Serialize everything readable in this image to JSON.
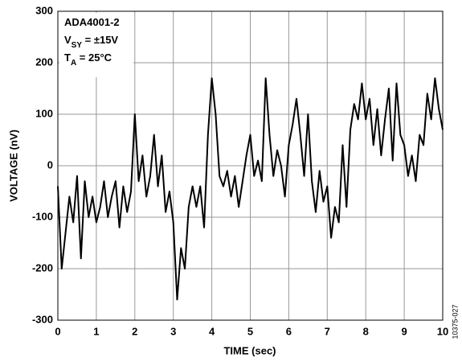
{
  "chart_data": {
    "type": "line",
    "xlabel": "TIME (sec)",
    "ylabel": "VOLTAGE (nV)",
    "annotation": [
      [
        "ADA4001-2"
      ],
      [
        "V",
        "SY",
        " = ±15V"
      ],
      [
        "T",
        "A",
        " = 25°C"
      ]
    ],
    "figure_id": "10375-027",
    "xlim": [
      0,
      10
    ],
    "ylim": [
      -300,
      300
    ],
    "xticks": [
      0,
      1,
      2,
      3,
      4,
      5,
      6,
      7,
      8,
      9,
      10
    ],
    "yticks": [
      -300,
      -200,
      -100,
      0,
      100,
      200,
      300
    ],
    "grid": true,
    "x": [
      0,
      0.1,
      0.2,
      0.3,
      0.4,
      0.5,
      0.6,
      0.7,
      0.8,
      0.9,
      1,
      1.1,
      1.2,
      1.3,
      1.4,
      1.5,
      1.6,
      1.7,
      1.8,
      1.9,
      2,
      2.1,
      2.2,
      2.3,
      2.4,
      2.5,
      2.6,
      2.7,
      2.8,
      2.9,
      3,
      3.1,
      3.2,
      3.3,
      3.4,
      3.5,
      3.6,
      3.7,
      3.8,
      3.9,
      4,
      4.1,
      4.2,
      4.3,
      4.4,
      4.5,
      4.6,
      4.7,
      4.8,
      4.9,
      5,
      5.1,
      5.2,
      5.3,
      5.4,
      5.5,
      5.6,
      5.7,
      5.8,
      5.9,
      6,
      6.1,
      6.2,
      6.3,
      6.4,
      6.5,
      6.6,
      6.7,
      6.8,
      6.9,
      7,
      7.1,
      7.2,
      7.3,
      7.4,
      7.5,
      7.6,
      7.7,
      7.8,
      7.9,
      8,
      8.1,
      8.2,
      8.3,
      8.4,
      8.5,
      8.6,
      8.7,
      8.8,
      8.9,
      9,
      9.1,
      9.2,
      9.3,
      9.4,
      9.5,
      9.6,
      9.7,
      9.8,
      9.9,
      10
    ],
    "series": [
      {
        "color": "#000000",
        "values": [
          -40,
          -200,
          -130,
          -60,
          -110,
          -20,
          -180,
          -30,
          -100,
          -60,
          -110,
          -80,
          -30,
          -100,
          -60,
          -30,
          -120,
          -40,
          -90,
          -50,
          100,
          -30,
          20,
          -60,
          -20,
          60,
          -40,
          20,
          -90,
          -50,
          -110,
          -260,
          -160,
          -200,
          -80,
          -40,
          -80,
          -40,
          -120,
          60,
          170,
          100,
          -20,
          -40,
          -10,
          -60,
          -20,
          -80,
          -30,
          20,
          60,
          -20,
          10,
          -30,
          170,
          60,
          -20,
          30,
          0,
          -60,
          40,
          80,
          130,
          60,
          -20,
          100,
          -30,
          -90,
          -10,
          -70,
          -40,
          -140,
          -80,
          -110,
          40,
          -80,
          70,
          120,
          90,
          160,
          90,
          130,
          40,
          110,
          20,
          90,
          150,
          10,
          160,
          60,
          40,
          -20,
          20,
          -30,
          60,
          40,
          140,
          90,
          170,
          110,
          70
        ]
      }
    ]
  }
}
